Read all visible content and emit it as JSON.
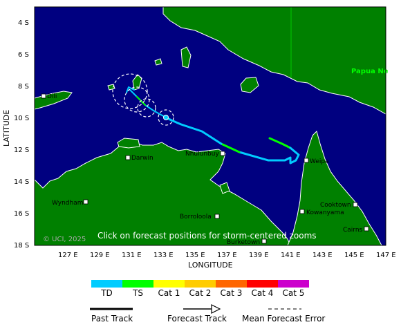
{
  "axes": {
    "latitude_title": "LATITUDE",
    "longitude_title": "LONGITUDE",
    "lat_ticks": [
      "4 S",
      "6 S",
      "8 S",
      "10 S",
      "12 S",
      "14 S",
      "16 S",
      "18 S"
    ],
    "lon_ticks": [
      "127 E",
      "129 E",
      "131 E",
      "133 E",
      "135 E",
      "137 E",
      "139 E",
      "141 E",
      "143 E",
      "145 E",
      "147 E"
    ]
  },
  "places": {
    "dili": "Dili",
    "darwin": "Darwin",
    "nhulunbuy": "Nhulunbuy",
    "weipa": "Weipa",
    "wyndham": "Wyndham",
    "kowanyama": "Kowanyama",
    "cooktown": "Cooktown",
    "cairns": "Cairns",
    "borroloola": "Borroloola",
    "burketown": "Burketown",
    "papua": "Papua Ne"
  },
  "overlay": {
    "copyright": "© UCI, 2025",
    "click_hint": "Click on forecast positions for storm-centered zooms"
  },
  "intensity_legend": [
    {
      "label": "TD",
      "color": "#00ccff"
    },
    {
      "label": "TS",
      "color": "#00ff00"
    },
    {
      "label": "Cat 1",
      "color": "#ffff00"
    },
    {
      "label": "Cat 2",
      "color": "#ffcc00"
    },
    {
      "label": "Cat 3",
      "color": "#ff6600"
    },
    {
      "label": "Cat 4",
      "color": "#ff0000"
    },
    {
      "label": "Cat 5",
      "color": "#cc00cc"
    }
  ],
  "track_legend": {
    "past": "Past Track",
    "forecast": "Forecast Track",
    "error": "Mean Forecast Error"
  },
  "colors": {
    "ocean": "#000080",
    "land": "#008000",
    "coast": "#ffffff",
    "td": "#00ccff",
    "ts": "#00ff00"
  }
}
